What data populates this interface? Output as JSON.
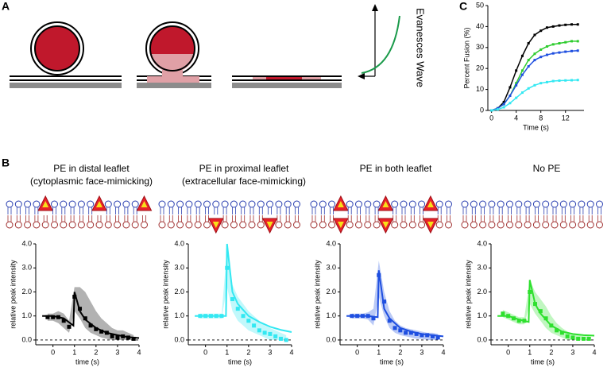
{
  "panel_labels": [
    "A",
    "B",
    "C"
  ],
  "diagram": {
    "axis_label": "Evanesces Wave"
  },
  "chart_data": [
    {
      "type": "line",
      "xlabel": "Time (s)",
      "ylabel": "Percent Fusion (%)",
      "x": [
        0,
        1,
        2,
        3,
        4,
        5,
        6,
        7,
        8,
        9,
        10,
        11,
        12,
        13,
        14
      ],
      "xlim": [
        -0.6,
        15
      ],
      "xticks": [
        0,
        4,
        8,
        12
      ],
      "ylim": [
        0,
        50
      ],
      "yticks": [
        0,
        10,
        20,
        30,
        40,
        50
      ],
      "series": [
        {
          "color": "#000000",
          "values": [
            0,
            1,
            4,
            11,
            19,
            26,
            32,
            36,
            38,
            39.5,
            40,
            40.5,
            40.8,
            41,
            41
          ]
        },
        {
          "color": "#2ecc2e",
          "values": [
            0,
            1,
            3,
            7,
            13,
            19,
            24,
            27,
            29,
            30.5,
            31.5,
            32,
            32.5,
            33,
            33
          ]
        },
        {
          "color": "#1f4fe0",
          "values": [
            0,
            1,
            3,
            7,
            12,
            17,
            21,
            24,
            25.5,
            26.5,
            27.2,
            27.6,
            28,
            28.3,
            28.5
          ]
        },
        {
          "color": "#33e8f2",
          "values": [
            0,
            0.5,
            1.5,
            3.5,
            6,
            8.5,
            10.5,
            12,
            13,
            13.5,
            14,
            14.2,
            14.3,
            14.4,
            14.5
          ]
        }
      ]
    },
    {
      "type": "kinetics",
      "title": "PE in distal leaflet",
      "subtitle": "(cytoplasmic face-mimicking)",
      "xlabel": "time (s)",
      "ylabel": "relative peak intensity",
      "color": "#000000",
      "xlim": [
        -0.8,
        4
      ],
      "xticks": [
        0,
        1,
        2,
        3,
        4
      ],
      "ylim": [
        -0.2,
        4
      ],
      "yticks": [
        {
          "value": 0,
          "label": "0.0"
        },
        {
          "value": 1,
          "label": "1.0"
        },
        {
          "value": 2,
          "label": "2.0"
        },
        {
          "value": 3,
          "label": "3.0"
        },
        {
          "value": 4,
          "label": "4.0"
        }
      ],
      "x": [
        -0.25,
        0,
        0.25,
        0.5,
        0.75,
        1,
        1.25,
        1.5,
        1.75,
        2,
        2.25,
        2.5,
        2.75,
        3,
        3.25,
        3.5,
        3.75
      ],
      "values": [
        0.95,
        0.95,
        0.95,
        0.8,
        0.55,
        1.8,
        1.3,
        0.9,
        0.6,
        0.45,
        0.35,
        0.3,
        0.15,
        0.1,
        0.15,
        0.1,
        0.05
      ],
      "band_low": [
        0.8,
        0.8,
        0.7,
        0.5,
        0.3,
        1.2,
        0.9,
        0.5,
        0.3,
        0.2,
        0.1,
        0.05,
        0,
        0,
        0,
        0,
        0
      ],
      "band_high": [
        1.1,
        1.1,
        1.2,
        1.1,
        0.8,
        2.2,
        2.2,
        2.0,
        1.6,
        1.2,
        0.9,
        0.7,
        0.5,
        0.4,
        0.4,
        0.3,
        0.2
      ],
      "fit_x": [
        -0.5,
        0,
        0.5,
        0.95,
        1,
        1.25,
        1.5,
        2,
        2.5,
        3,
        3.5,
        4
      ],
      "fit": [
        1.0,
        1.0,
        0.9,
        0.6,
        2.0,
        1.2,
        0.85,
        0.5,
        0.3,
        0.2,
        0.12,
        0.08
      ]
    },
    {
      "type": "kinetics",
      "title": "PE in proximal leaflet",
      "subtitle": "(extracellular face-mimicking)",
      "xlabel": "time (s)",
      "ylabel": "relative peak intensity",
      "color": "#33e8f2",
      "xlim": [
        -0.8,
        4
      ],
      "xticks": [
        0,
        1,
        2,
        3,
        4
      ],
      "ylim": [
        -0.2,
        4
      ],
      "yticks": [
        {
          "value": 0,
          "label": "0.0"
        },
        {
          "value": 1,
          "label": "1.0"
        },
        {
          "value": 2,
          "label": "2.0"
        },
        {
          "value": 3,
          "label": "3.0"
        },
        {
          "value": 4,
          "label": "4.0"
        }
      ],
      "x": [
        -0.25,
        0,
        0.25,
        0.5,
        0.75,
        1,
        1.25,
        1.5,
        1.75,
        2,
        2.25,
        2.5,
        2.75,
        3,
        3.25,
        3.5,
        3.75
      ],
      "values": [
        1.0,
        1.0,
        1.0,
        1.0,
        1.0,
        3.0,
        1.7,
        1.3,
        1.0,
        0.8,
        0.6,
        0.4,
        0.3,
        0.25,
        0.15,
        0.05,
        0
      ],
      "band_low": [
        0.9,
        0.9,
        0.9,
        0.9,
        0.9,
        2.2,
        1.2,
        0.8,
        0.6,
        0.4,
        0.3,
        0.2,
        0.1,
        0,
        0,
        0,
        0
      ],
      "band_high": [
        1.1,
        1.1,
        1.1,
        1.1,
        1.1,
        3.8,
        2.3,
        1.8,
        1.5,
        1.2,
        1.0,
        0.8,
        0.6,
        0.5,
        0.4,
        0.3,
        0.2
      ],
      "fit_x": [
        -0.5,
        0,
        0.5,
        0.95,
        1,
        1.25,
        1.5,
        2,
        2.5,
        3,
        3.5,
        4
      ],
      "fit": [
        1.0,
        1.0,
        1.0,
        1.0,
        4.0,
        2.0,
        1.5,
        1.0,
        0.75,
        0.55,
        0.42,
        0.33
      ]
    },
    {
      "type": "kinetics",
      "title": "PE in both leaflet",
      "xlabel": "time (s)",
      "ylabel": "relative peak intensity",
      "color": "#1f4fe0",
      "xlim": [
        -0.8,
        4
      ],
      "xticks": [
        0,
        1,
        2,
        3,
        4
      ],
      "ylim": [
        -0.2,
        4
      ],
      "yticks": [
        {
          "value": 0,
          "label": "0.0"
        },
        {
          "value": 1,
          "label": "1.0"
        },
        {
          "value": 2,
          "label": "2.0"
        },
        {
          "value": 3,
          "label": "3.0"
        },
        {
          "value": 4,
          "label": "4.0"
        }
      ],
      "x": [
        -0.25,
        0,
        0.25,
        0.5,
        0.75,
        1,
        1.25,
        1.5,
        1.75,
        2,
        2.25,
        2.5,
        2.75,
        3,
        3.25,
        3.5,
        3.75
      ],
      "values": [
        1.0,
        1.0,
        1.0,
        1.0,
        0.9,
        2.7,
        1.6,
        0.8,
        0.5,
        0.4,
        0.3,
        0.3,
        0.25,
        0.2,
        0.2,
        0.15,
        0.1
      ],
      "band_low": [
        0.9,
        0.9,
        0.9,
        0.85,
        0.6,
        1.8,
        1.0,
        0.5,
        0.3,
        0.2,
        0.15,
        0.1,
        0.05,
        0.05,
        0,
        0,
        0
      ],
      "band_high": [
        1.1,
        1.1,
        1.1,
        1.15,
        1.3,
        3.3,
        2.0,
        1.2,
        0.8,
        0.6,
        0.5,
        0.45,
        0.4,
        0.35,
        0.3,
        0.3,
        0.25
      ],
      "fit_x": [
        -0.5,
        0,
        0.5,
        0.95,
        1,
        1.25,
        1.5,
        2,
        2.5,
        3,
        3.5,
        4
      ],
      "fit": [
        1.0,
        1.0,
        1.0,
        0.95,
        2.9,
        1.3,
        0.9,
        0.5,
        0.35,
        0.25,
        0.2,
        0.15
      ]
    },
    {
      "type": "kinetics",
      "title": "No PE",
      "xlabel": "time (s)",
      "ylabel": "relative peak intensity",
      "color": "#2ee02e",
      "xlim": [
        -0.8,
        4
      ],
      "xticks": [
        0,
        1,
        2,
        3,
        4
      ],
      "ylim": [
        -0.2,
        4
      ],
      "yticks": [
        {
          "value": 0,
          "label": "0.0"
        },
        {
          "value": 1,
          "label": "1.0"
        },
        {
          "value": 2,
          "label": "2.0"
        },
        {
          "value": 3,
          "label": "3.0"
        },
        {
          "value": 4,
          "label": "4.0"
        }
      ],
      "x": [
        -0.25,
        0,
        0.25,
        0.5,
        0.75,
        1,
        1.25,
        1.5,
        1.75,
        2,
        2.25,
        2.5,
        2.75,
        3,
        3.25,
        3.5,
        3.75
      ],
      "values": [
        1.1,
        1.0,
        0.9,
        0.8,
        0.8,
        2.0,
        1.5,
        1.2,
        0.9,
        0.6,
        0.4,
        0.3,
        0.15,
        0.1,
        0.05,
        0.05,
        0.05
      ],
      "band_low": [
        0.95,
        0.85,
        0.75,
        0.65,
        0.65,
        1.5,
        1.1,
        0.8,
        0.5,
        0.3,
        0.2,
        0.1,
        0,
        0,
        0,
        0,
        0
      ],
      "band_high": [
        1.25,
        1.15,
        1.05,
        0.95,
        0.95,
        2.5,
        2.0,
        1.7,
        1.4,
        1.0,
        0.7,
        0.5,
        0.35,
        0.25,
        0.2,
        0.15,
        0.15
      ],
      "fit_x": [
        -0.5,
        0,
        0.5,
        0.95,
        1,
        1.25,
        1.5,
        2,
        2.5,
        3,
        3.5,
        4
      ],
      "fit": [
        1.0,
        1.0,
        0.85,
        0.75,
        2.5,
        1.5,
        1.1,
        0.6,
        0.35,
        0.25,
        0.2,
        0.18
      ]
    }
  ]
}
